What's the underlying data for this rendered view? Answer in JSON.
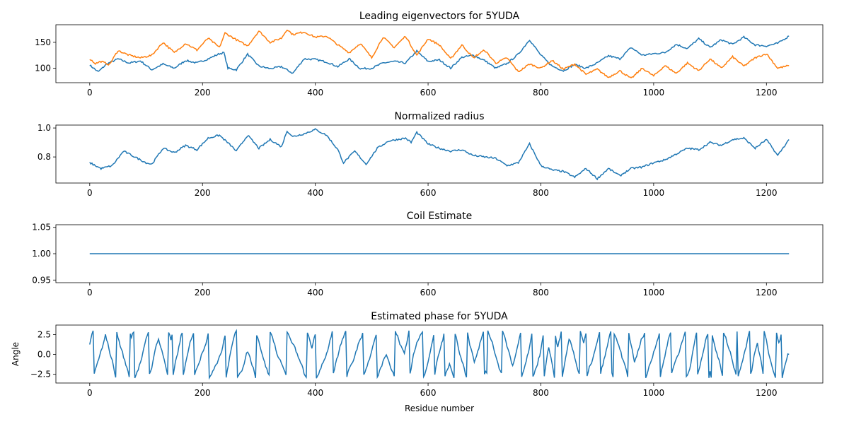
{
  "chart_data": [
    {
      "type": "line",
      "title": "Leading eigenvectors for 5YUDA",
      "xlabel": "",
      "ylabel": "",
      "xlim": [
        -60,
        1300
      ],
      "ylim": [
        72,
        184
      ],
      "xticks": [
        0,
        200,
        400,
        600,
        800,
        1000,
        1200
      ],
      "yticks": [
        100,
        150
      ],
      "grid": false,
      "series": [
        {
          "color": "#1f77b4",
          "x": [
            0,
            15,
            30,
            50,
            70,
            90,
            110,
            130,
            150,
            170,
            190,
            210,
            230,
            238,
            245,
            260,
            280,
            300,
            320,
            340,
            360,
            380,
            400,
            420,
            440,
            460,
            480,
            500,
            520,
            540,
            560,
            580,
            600,
            620,
            640,
            660,
            680,
            700,
            720,
            740,
            760,
            780,
            800,
            820,
            840,
            860,
            880,
            900,
            920,
            940,
            960,
            980,
            1000,
            1020,
            1040,
            1060,
            1080,
            1100,
            1120,
            1140,
            1160,
            1180,
            1200,
            1220,
            1240
          ],
          "y": [
            106,
            93,
            108,
            118,
            110,
            114,
            97,
            108,
            100,
            115,
            110,
            118,
            128,
            130,
            100,
            97,
            127,
            104,
            99,
            103,
            90,
            118,
            117,
            112,
            103,
            118,
            99,
            100,
            110,
            113,
            110,
            133,
            113,
            116,
            100,
            121,
            125,
            115,
            100,
            109,
            127,
            155,
            125,
            104,
            95,
            107,
            100,
            110,
            124,
            118,
            140,
            125,
            128,
            130,
            146,
            138,
            157,
            140,
            155,
            146,
            160,
            145,
            143,
            148,
            162
          ]
        },
        {
          "color": "#ff7f0e",
          "x": [
            0,
            10,
            20,
            35,
            50,
            70,
            90,
            110,
            130,
            150,
            170,
            190,
            210,
            230,
            240,
            260,
            280,
            300,
            320,
            340,
            350,
            360,
            380,
            400,
            420,
            440,
            460,
            480,
            500,
            520,
            540,
            560,
            580,
            600,
            620,
            640,
            660,
            680,
            700,
            720,
            740,
            760,
            780,
            800,
            820,
            840,
            860,
            880,
            900,
            920,
            940,
            960,
            980,
            1000,
            1020,
            1040,
            1060,
            1080,
            1100,
            1120,
            1140,
            1160,
            1180,
            1200,
            1220,
            1240
          ],
          "y": [
            118,
            109,
            113,
            107,
            134,
            125,
            120,
            125,
            150,
            130,
            148,
            135,
            158,
            140,
            168,
            155,
            143,
            172,
            150,
            158,
            175,
            165,
            170,
            160,
            162,
            145,
            130,
            148,
            120,
            160,
            140,
            162,
            125,
            157,
            145,
            118,
            145,
            120,
            135,
            110,
            120,
            93,
            108,
            100,
            115,
            98,
            108,
            88,
            98,
            82,
            95,
            80,
            100,
            85,
            105,
            90,
            110,
            95,
            118,
            100,
            122,
            104,
            120,
            128,
            100,
            105
          ]
        }
      ]
    },
    {
      "type": "line",
      "title": "Normalized radius",
      "xlabel": "",
      "ylabel": "",
      "xlim": [
        -60,
        1300
      ],
      "ylim": [
        0.62,
        1.02
      ],
      "xticks": [
        0,
        200,
        400,
        600,
        800,
        1000,
        1200
      ],
      "yticks": [
        0.8,
        1.0
      ],
      "ytick_labels": [
        "0.8",
        "1.0"
      ],
      "grid": false,
      "series": [
        {
          "color": "#1f77b4",
          "x": [
            0,
            20,
            40,
            60,
            80,
            100,
            110,
            130,
            150,
            170,
            190,
            210,
            230,
            250,
            260,
            280,
            300,
            320,
            340,
            350,
            360,
            380,
            400,
            420,
            440,
            450,
            470,
            490,
            510,
            530,
            560,
            570,
            580,
            600,
            620,
            640,
            660,
            680,
            700,
            720,
            740,
            760,
            780,
            800,
            820,
            840,
            860,
            880,
            900,
            920,
            940,
            960,
            980,
            1000,
            1020,
            1040,
            1060,
            1080,
            1100,
            1120,
            1140,
            1160,
            1180,
            1200,
            1220,
            1240
          ],
          "y": [
            0.76,
            0.72,
            0.74,
            0.84,
            0.8,
            0.76,
            0.75,
            0.86,
            0.83,
            0.88,
            0.85,
            0.93,
            0.95,
            0.88,
            0.84,
            0.95,
            0.86,
            0.92,
            0.87,
            0.98,
            0.94,
            0.96,
            0.99,
            0.95,
            0.85,
            0.76,
            0.84,
            0.75,
            0.86,
            0.91,
            0.93,
            0.9,
            0.97,
            0.89,
            0.86,
            0.84,
            0.85,
            0.81,
            0.8,
            0.79,
            0.74,
            0.76,
            0.89,
            0.74,
            0.71,
            0.7,
            0.66,
            0.72,
            0.65,
            0.72,
            0.67,
            0.72,
            0.73,
            0.76,
            0.78,
            0.82,
            0.86,
            0.85,
            0.9,
            0.88,
            0.92,
            0.93,
            0.86,
            0.92,
            0.81,
            0.92
          ]
        }
      ]
    },
    {
      "type": "line",
      "title": "Coil Estimate",
      "xlabel": "",
      "ylabel": "",
      "xlim": [
        -60,
        1300
      ],
      "ylim": [
        0.945,
        1.055
      ],
      "xticks": [
        0,
        200,
        400,
        600,
        800,
        1000,
        1200
      ],
      "yticks": [
        0.95,
        1.0,
        1.05
      ],
      "ytick_labels": [
        "0.95",
        "1.00",
        "1.05"
      ],
      "grid": false,
      "series": [
        {
          "color": "#1f77b4",
          "x": [
            0,
            1240
          ],
          "y": [
            1.0,
            1.0
          ]
        }
      ]
    },
    {
      "type": "line",
      "title": "Estimated phase for 5YUDA",
      "xlabel": "Residue number",
      "ylabel": "Angle",
      "xlim": [
        -60,
        1300
      ],
      "ylim": [
        -3.6,
        3.7
      ],
      "xticks": [
        0,
        200,
        400,
        600,
        800,
        1000,
        1200
      ],
      "yticks": [
        -2.5,
        0.0,
        2.5
      ],
      "ytick_labels": [
        "−2.5",
        "0.0",
        "2.5"
      ],
      "grid": false,
      "series": [
        {
          "color": "#1f77b4",
          "period_hint": 28,
          "x_start": 0,
          "x_end": 1240,
          "start_value": 1.0,
          "end_value": 0.0,
          "sawtooth_min": -3.0,
          "sawtooth_max": 3.0
        }
      ]
    }
  ]
}
